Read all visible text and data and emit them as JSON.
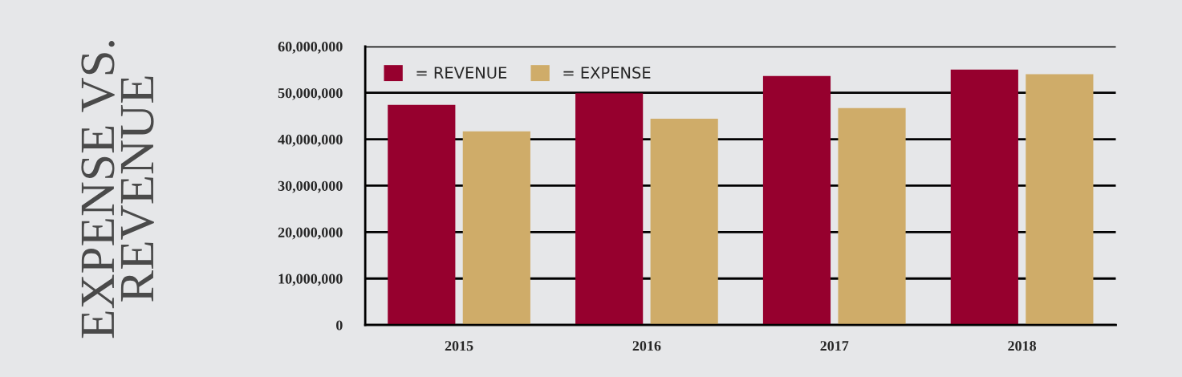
{
  "chart_data": {
    "type": "bar",
    "title": "EXPENSE VS.\nREVENUE",
    "categories": [
      "2015",
      "2016",
      "2017",
      "2018"
    ],
    "series": [
      {
        "name": "= REVENUE",
        "color": "#96002e",
        "values": [
          47400000,
          49900000,
          53600000,
          55000000
        ]
      },
      {
        "name": "= EXPENSE",
        "color": "#cfac69",
        "values": [
          41700000,
          44400000,
          46700000,
          54000000
        ]
      }
    ],
    "ylim": [
      0,
      60000000
    ],
    "yticks": [
      {
        "value": 0,
        "label": "0"
      },
      {
        "value": 10000000,
        "label": "10,000,000"
      },
      {
        "value": 20000000,
        "label": "20,000,000"
      },
      {
        "value": 30000000,
        "label": "30,000,000"
      },
      {
        "value": 40000000,
        "label": "40,000,000"
      },
      {
        "value": 50000000,
        "label": "50,000,000"
      },
      {
        "value": 60000000,
        "label": "60,000,000"
      }
    ],
    "grid": "y",
    "legend": "top left"
  }
}
